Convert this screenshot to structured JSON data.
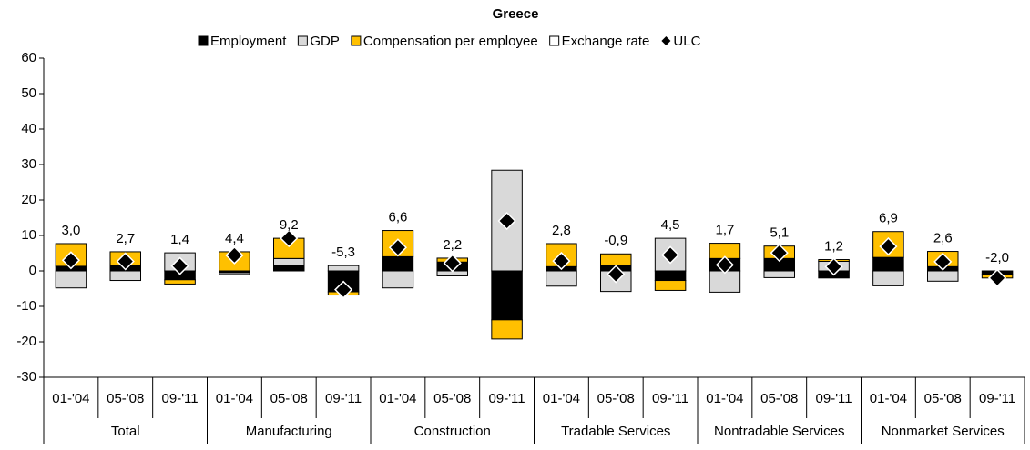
{
  "chart_data": {
    "type": "stacked_bar",
    "title": "Greece",
    "categories": [
      "01-'04",
      "05-'08",
      "09-'11",
      "01-'04",
      "05-'08",
      "09-'11",
      "01-'04",
      "05-'08",
      "09-'11",
      "01-'04",
      "05-'08",
      "09-'11",
      "01-'04",
      "05-'08",
      "09-'11",
      "01-'04",
      "05-'08",
      "09-'11"
    ],
    "groups": [
      "Total",
      "Manufacturing",
      "Construction",
      "Tradable Services",
      "Nontradable Services",
      "Nonmarket Services"
    ],
    "series": [
      {
        "name": "Employment",
        "color": "#000000",
        "values": [
          1.3,
          1.5,
          -2.5,
          -0.5,
          1.5,
          -5.9,
          4.0,
          2.5,
          -13.8,
          1.2,
          1.5,
          -2.7,
          3.5,
          3.5,
          -2.0,
          3.8,
          1.2,
          -1.0
        ]
      },
      {
        "name": "GDP",
        "color": "#d9d9d9",
        "values": [
          -4.8,
          -2.7,
          5.1,
          -0.5,
          2.0,
          1.5,
          -4.8,
          -1.4,
          28.4,
          -4.3,
          -5.8,
          9.2,
          -6.0,
          -1.9,
          2.7,
          -4.2,
          -2.9,
          0
        ]
      },
      {
        "name": "Compensation per employee",
        "color": "#ffc000",
        "values": [
          6.4,
          3.9,
          -1.2,
          5.4,
          5.7,
          -0.9,
          7.4,
          1.1,
          -5.4,
          6.5,
          3.3,
          -2.8,
          4.3,
          3.5,
          0.5,
          7.3,
          4.3,
          -1.0
        ]
      },
      {
        "name": "Exchange rate",
        "color": "#ffffff",
        "values": [
          0,
          0,
          0,
          0,
          0,
          0,
          0,
          0,
          0,
          0,
          0,
          0,
          0,
          0,
          0,
          0,
          0,
          0
        ]
      }
    ],
    "markers": {
      "name": "ULC",
      "color": "#000000",
      "values": [
        3.0,
        2.7,
        1.4,
        4.4,
        9.2,
        -5.3,
        6.6,
        2.2,
        14.1,
        2.8,
        -0.9,
        4.5,
        1.7,
        5.1,
        1.2,
        6.9,
        2.6,
        -2.0
      ],
      "value_labels": [
        "3,0",
        "2,7",
        "1,4",
        "4,4",
        "9,2",
        "-5,3",
        "6,6",
        "2,2",
        null,
        "2,8",
        "-0,9",
        "4,5",
        "1,7",
        "5,1",
        "1,2",
        "6,9",
        "2,6",
        "-2,0"
      ]
    },
    "ylim": [
      -30,
      60
    ],
    "yticks": [
      -30,
      -20,
      -10,
      0,
      10,
      20,
      30,
      40,
      50,
      60
    ],
    "grid": false,
    "legend": "top"
  }
}
